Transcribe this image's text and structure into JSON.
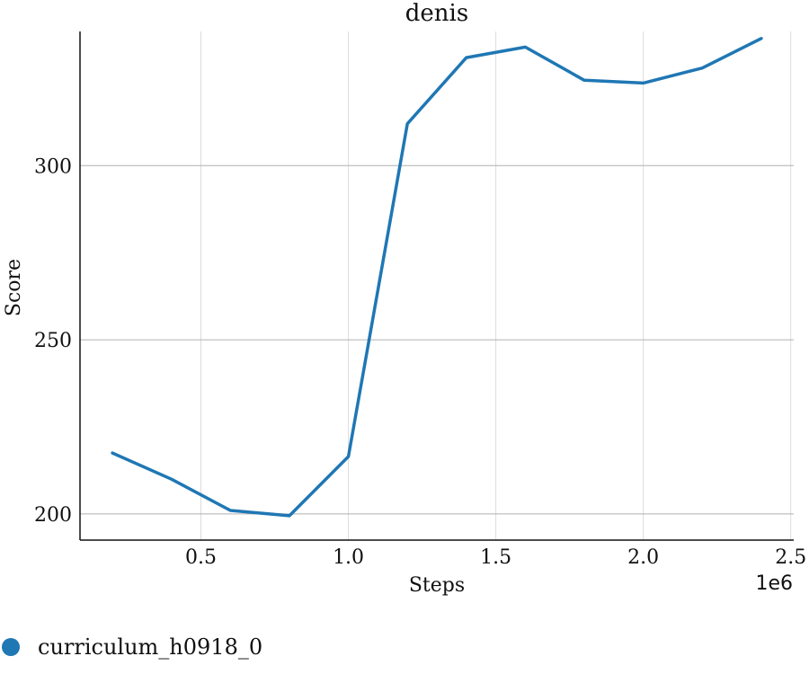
{
  "chart_data": {
    "type": "line",
    "title": "denis",
    "xlabel": "Steps",
    "ylabel": "Score",
    "x_scale_label": "1e6",
    "xlim": [
      0.09,
      2.51
    ],
    "ylim": [
      192.5,
      338.5
    ],
    "x_ticks": [
      0.5,
      1.0,
      1.5,
      2.0,
      2.5
    ],
    "x_tick_labels": [
      "0.5",
      "1.0",
      "1.5",
      "2.0",
      "2.5"
    ],
    "y_ticks": [
      200,
      250,
      300
    ],
    "y_tick_labels": [
      "200",
      "250",
      "300"
    ],
    "grid": true,
    "legend_placement": "bottom-left",
    "series": [
      {
        "name": "curriculum_h0918_0",
        "color": "#1f77b4",
        "x": [
          0.2,
          0.4,
          0.6,
          0.8,
          1.0,
          1.2,
          1.4,
          1.6,
          1.8,
          2.0,
          2.2,
          2.4
        ],
        "y": [
          217.5,
          210,
          201,
          199.5,
          216.5,
          312,
          331,
          334,
          324.5,
          323.7,
          328,
          336.5
        ]
      }
    ]
  }
}
